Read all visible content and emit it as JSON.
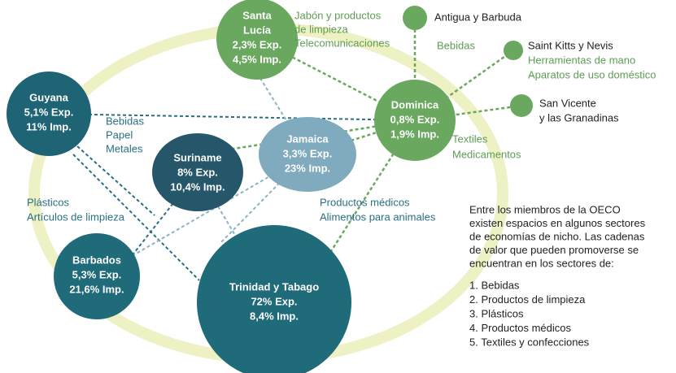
{
  "nodes": [
    {
      "lines": [
        "Santa",
        "Lucía",
        "2,3% Exp.",
        "4,5% Imp."
      ]
    },
    {
      "lines": [
        "Guyana",
        "5,1% Exp.",
        "11% Imp."
      ]
    },
    {
      "lines": [
        "Suriname",
        "8% Exp.",
        "10,4% Imp."
      ]
    },
    {
      "lines": [
        "Jamaica",
        "3,3% Exp.",
        "23% Imp."
      ]
    },
    {
      "lines": [
        "Dominica",
        "0,8% Exp.",
        "1,9% Imp."
      ]
    },
    {
      "lines": [
        "Barbados",
        "5,3% Exp.",
        "21,6% Imp."
      ]
    },
    {
      "lines": [
        "Trinidad y Tabago",
        "72% Exp.",
        "8,4% Imp."
      ]
    }
  ],
  "leaves": [
    {
      "lines": [
        "Antigua y Barbuda"
      ]
    },
    {
      "lines": [
        "Saint Kitts y Nevis"
      ]
    },
    {
      "lines": [
        "San Vicente",
        "y las Granadinas"
      ]
    }
  ],
  "products": [
    {
      "lines": [
        "Jabón  y productos",
        "de limpieza",
        "Telecomunicaciones"
      ]
    },
    {
      "lines": [
        "Bebidas"
      ]
    },
    {
      "lines": [
        "Herramientas de mano",
        "Aparatos de uso doméstico"
      ]
    },
    {
      "lines": [
        "Textiles",
        "Medicamentos"
      ]
    },
    {
      "lines": [
        "Bebidas",
        "Papel",
        "Metales"
      ]
    },
    {
      "lines": [
        "Plásticos",
        "Artículos de limpieza"
      ]
    },
    {
      "lines": [
        "Productos médicos",
        "Alimentos para animales"
      ]
    }
  ],
  "note": {
    "lines": [
      "Entre los miembros de la OECO",
      "existen espacios en algunos sectores",
      "de economías de nicho. Las cadenas",
      "de valor que pueden promoverse se",
      "encuentran en los sectores de:"
    ],
    "items": [
      "1. Bebidas",
      "2. Productos de limpieza",
      "3. Plásticos",
      "4. Productos médicos",
      "5. Textiles y confecciones"
    ]
  }
}
